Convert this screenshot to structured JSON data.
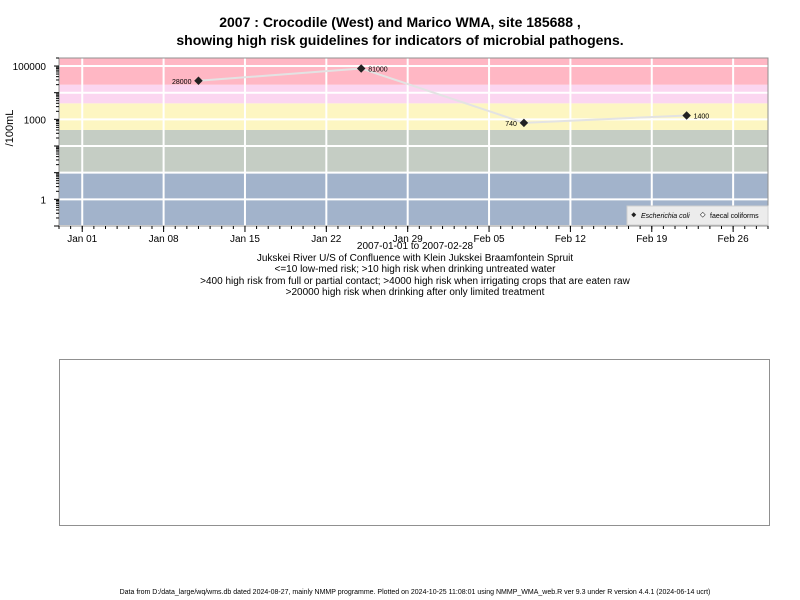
{
  "title": {
    "line1": "2007 : Crocodile (West) and Marico WMA, site 185688 ,",
    "line2": "showing high risk guidelines for indicators of microbial pathogens."
  },
  "subtitles": [
    "2007-01-01 to 2007-02-28",
    "Jukskei River U/S of Confluence with Klein Jukskei Braamfontein Spruit",
    "<=10 low-med risk; >10 high risk when drinking untreated water",
    ">400 high risk from full or partial contact; >4000 high risk when irrigating crops that are eaten raw",
    ">20000 high risk when drinking after only limited treatment"
  ],
  "footer": "Data from D:/data_large/wq/wms.db dated 2024-08-27, mainly NMMP programme. Plotted on 2024-10-25 11:08:01 using NMMP_WMA_web.R ver 9.3 under R version 4.4.1 (2024-06-14 ucrt)",
  "chart_data": {
    "type": "scatter",
    "ylabel": "/100mL",
    "xlabel": "",
    "y_scale": "log10",
    "ylim": [
      0.1,
      200000
    ],
    "xlim": [
      "2006-12-30",
      "2007-03-01"
    ],
    "x_ticks": [
      {
        "date": "2007-01-01",
        "label": "Jan 01"
      },
      {
        "date": "2007-01-08",
        "label": "Jan 08"
      },
      {
        "date": "2007-01-15",
        "label": "Jan 15"
      },
      {
        "date": "2007-01-22",
        "label": "Jan 22"
      },
      {
        "date": "2007-01-29",
        "label": "Jan 29"
      },
      {
        "date": "2007-02-05",
        "label": "Feb 05"
      },
      {
        "date": "2007-02-12",
        "label": "Feb 12"
      },
      {
        "date": "2007-02-19",
        "label": "Feb 19"
      },
      {
        "date": "2007-02-26",
        "label": "Feb 26"
      }
    ],
    "y_ticks": [
      {
        "value": 1,
        "label": "1"
      },
      {
        "value": 1000,
        "label": "1000"
      },
      {
        "value": 100000,
        "label": "100000"
      }
    ],
    "bands": [
      {
        "from": 0.1,
        "to": 10,
        "color": "#a2b3cb"
      },
      {
        "from": 10,
        "to": 400,
        "color": "#c5cdc4"
      },
      {
        "from": 400,
        "to": 4000,
        "color": "#fdf6c2"
      },
      {
        "from": 4000,
        "to": 20000,
        "color": "#fbd6f0"
      },
      {
        "from": 20000,
        "to": 200000,
        "color": "#ffb7c4"
      }
    ],
    "grid": true,
    "series": [
      {
        "name": "Escherichia coli",
        "color": "#222222",
        "line_color": "#e3e3e3",
        "points": [
          {
            "x": "2007-01-11",
            "y": 28000,
            "label": "28000"
          },
          {
            "x": "2007-01-25",
            "y": 81000,
            "label": "81000"
          },
          {
            "x": "2007-02-08",
            "y": 740,
            "label": "740"
          },
          {
            "x": "2007-02-22",
            "y": 1400,
            "label": "1400"
          }
        ]
      },
      {
        "name": "faecal coliforms",
        "color": "#ffffff",
        "points": []
      }
    ],
    "legend": {
      "position": "bottom-right",
      "items": [
        "Escherichia coli",
        "faecal coliforms"
      ]
    }
  }
}
